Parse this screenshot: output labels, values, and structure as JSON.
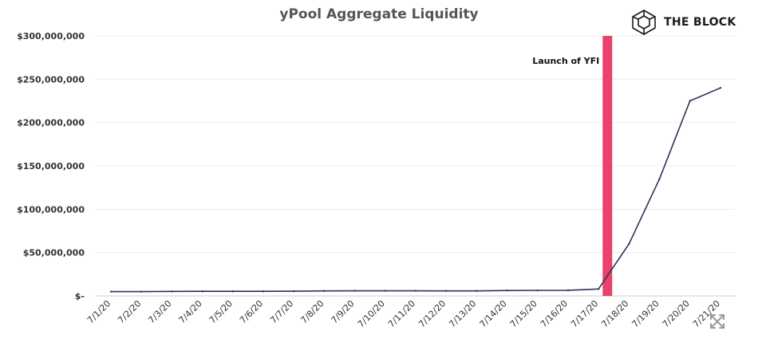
{
  "brand": {
    "name": "THE BLOCK",
    "logo_icon": "cube-icon"
  },
  "controls": {
    "expand_icon": "expand-icon"
  },
  "chart_data": {
    "type": "line",
    "title": "yPool Aggregate Liquidity",
    "xlabel": "",
    "ylabel": "",
    "categories": [
      "7/1/20",
      "7/2/20",
      "7/3/20",
      "7/4/20",
      "7/5/20",
      "7/6/20",
      "7/7/20",
      "7/8/20",
      "7/9/20",
      "7/10/20",
      "7/11/20",
      "7/12/20",
      "7/13/20",
      "7/14/20",
      "7/15/20",
      "7/16/20",
      "7/17/20",
      "7/18/20",
      "7/19/20",
      "7/20/20",
      "7/21/20"
    ],
    "series": [
      {
        "values": [
          5000000,
          5000000,
          5200000,
          5300000,
          5300000,
          5300000,
          5400000,
          5800000,
          5900000,
          5900000,
          5900000,
          5800000,
          5800000,
          6300000,
          6400000,
          6500000,
          8000000,
          60000000,
          135000000,
          225000000,
          240000000
        ],
        "color": "#2e3357"
      }
    ],
    "ylim": [
      0,
      300000000
    ],
    "yticks": [
      {
        "value": 0,
        "label": "$-"
      },
      {
        "value": 50000000,
        "label": "$50,000,000"
      },
      {
        "value": 100000000,
        "label": "$100,000,000"
      },
      {
        "value": 150000000,
        "label": "$150,000,000"
      },
      {
        "value": 200000000,
        "label": "$200,000,000"
      },
      {
        "value": 250000000,
        "label": "$250,000,000"
      },
      {
        "value": 300000000,
        "label": "$300,000,000"
      }
    ],
    "grid": true,
    "annotations": [
      {
        "type": "vertical-band",
        "x_between": [
          "7/17/20",
          "7/18/20"
        ],
        "label": "Launch of YFI",
        "color": "#e8436a"
      }
    ]
  }
}
